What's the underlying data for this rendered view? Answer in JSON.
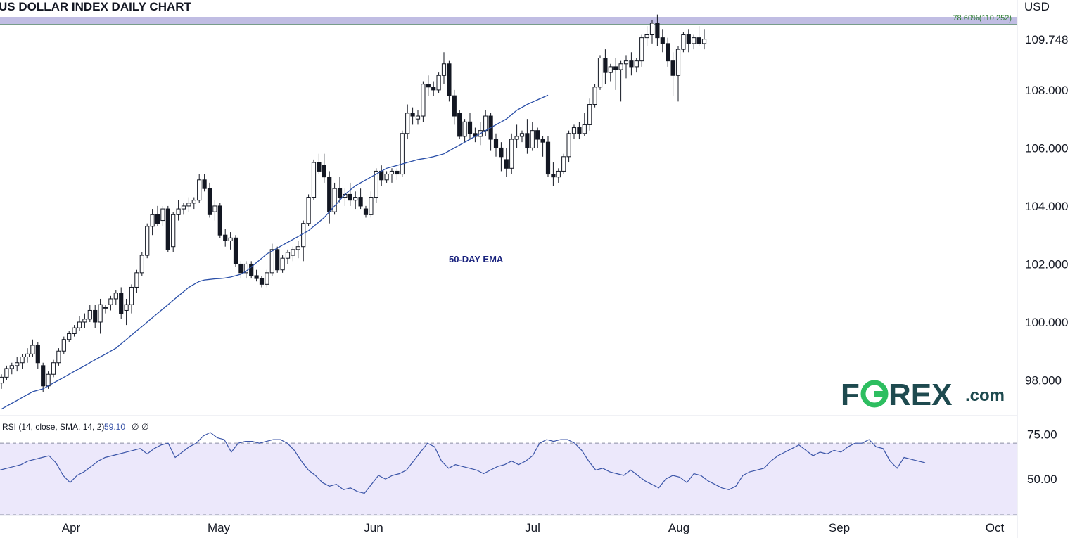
{
  "chart_data": [
    {
      "type": "candlestick",
      "title": "US DOLLAR INDEX DAILY CHART",
      "currency": "USD",
      "y_ticks": [
        "98.000",
        "100.000",
        "102.000",
        "104.000",
        "106.000",
        "108.000",
        "109.748"
      ],
      "ylim": [
        96.8,
        111.1
      ],
      "x_ticks": [
        "Apr",
        "May",
        "Jun",
        "Jul",
        "Aug",
        "Sep",
        "Oct"
      ],
      "current_price": "109.748",
      "fib_level": {
        "label": "78.60%(110.252)",
        "value": 110.252
      },
      "ema": {
        "label": "50-DAY EMA",
        "values": [
          97.0,
          97.1,
          97.2,
          97.3,
          97.4,
          97.5,
          97.6,
          97.65,
          97.7,
          97.8,
          97.9,
          98.0,
          98.1,
          98.2,
          98.3,
          98.4,
          98.5,
          98.6,
          98.7,
          98.8,
          98.9,
          99.0,
          99.1,
          99.25,
          99.4,
          99.55,
          99.7,
          99.85,
          100.0,
          100.15,
          100.3,
          100.45,
          100.6,
          100.75,
          100.9,
          101.05,
          101.2,
          101.3,
          101.4,
          101.45,
          101.47,
          101.49,
          101.5,
          101.52,
          101.55,
          101.6,
          101.65,
          101.75,
          101.9,
          102.05,
          102.2,
          102.35,
          102.45,
          102.55,
          102.65,
          102.75,
          102.85,
          102.95,
          103.05,
          103.15,
          103.3,
          103.45,
          103.6,
          103.8,
          104.0,
          104.2,
          104.4,
          104.55,
          104.7,
          104.8,
          104.9,
          105.0,
          105.1,
          105.2,
          105.3,
          105.35,
          105.4,
          105.45,
          105.5,
          105.55,
          105.6,
          105.63,
          105.66,
          105.7,
          105.75,
          105.8,
          105.9,
          106.0,
          106.1,
          106.2,
          106.3,
          106.4,
          106.5,
          106.6,
          106.7,
          106.8,
          106.9,
          107.0,
          107.15,
          107.3,
          107.4,
          107.5,
          107.58,
          107.66,
          107.74,
          107.82
        ]
      },
      "candles": [
        [
          97.9,
          98.2,
          97.7,
          98.1
        ],
        [
          98.1,
          98.5,
          98.0,
          98.4
        ],
        [
          98.4,
          98.6,
          98.2,
          98.5
        ],
        [
          98.5,
          98.8,
          98.3,
          98.6
        ],
        [
          98.6,
          98.9,
          98.4,
          98.8
        ],
        [
          98.8,
          99.1,
          98.6,
          98.9
        ],
        [
          98.9,
          99.4,
          98.8,
          99.2
        ],
        [
          99.2,
          99.3,
          98.4,
          98.6
        ],
        [
          98.5,
          98.6,
          97.6,
          97.8
        ],
        [
          97.8,
          98.3,
          97.7,
          98.2
        ],
        [
          98.2,
          98.7,
          98.1,
          98.6
        ],
        [
          98.6,
          99.1,
          98.5,
          99.0
        ],
        [
          99.0,
          99.5,
          98.9,
          99.4
        ],
        [
          99.4,
          99.7,
          99.3,
          99.6
        ],
        [
          99.6,
          99.9,
          99.5,
          99.8
        ],
        [
          99.8,
          100.2,
          99.7,
          100.0
        ],
        [
          100.0,
          100.3,
          99.8,
          100.1
        ],
        [
          100.1,
          100.6,
          100.0,
          100.4
        ],
        [
          100.4,
          100.6,
          99.8,
          100.0
        ],
        [
          100.0,
          100.8,
          99.6,
          100.6
        ],
        [
          100.5,
          100.6,
          100.3,
          100.5
        ],
        [
          100.6,
          100.9,
          100.4,
          100.8
        ],
        [
          100.8,
          101.1,
          100.6,
          101.0
        ],
        [
          101.0,
          101.2,
          100.1,
          100.3
        ],
        [
          100.4,
          100.8,
          99.9,
          100.6
        ],
        [
          100.6,
          101.3,
          100.3,
          101.2
        ],
        [
          101.2,
          101.8,
          101.0,
          101.7
        ],
        [
          101.7,
          102.4,
          101.6,
          102.3
        ],
        [
          102.3,
          103.4,
          102.2,
          103.3
        ],
        [
          103.3,
          103.9,
          103.0,
          103.7
        ],
        [
          103.7,
          104.0,
          103.3,
          103.4
        ],
        [
          103.5,
          104.0,
          103.3,
          103.9
        ],
        [
          103.9,
          104.0,
          102.4,
          102.5
        ],
        [
          102.6,
          103.8,
          102.4,
          103.7
        ],
        [
          103.7,
          104.2,
          103.5,
          103.9
        ],
        [
          103.9,
          104.1,
          103.7,
          104.0
        ],
        [
          104.0,
          104.3,
          103.8,
          104.1
        ],
        [
          104.1,
          104.3,
          103.9,
          104.2
        ],
        [
          104.2,
          105.1,
          104.1,
          104.9
        ],
        [
          104.9,
          105.1,
          104.5,
          104.6
        ],
        [
          104.6,
          104.8,
          103.6,
          103.7
        ],
        [
          103.8,
          104.2,
          103.5,
          104.0
        ],
        [
          104.0,
          104.1,
          102.9,
          103.0
        ],
        [
          103.0,
          103.2,
          102.6,
          102.8
        ],
        [
          102.8,
          103.1,
          102.5,
          102.9
        ],
        [
          102.9,
          103.0,
          101.9,
          102.0
        ],
        [
          102.0,
          102.1,
          101.5,
          101.7
        ],
        [
          101.7,
          102.1,
          101.5,
          102.0
        ],
        [
          102.0,
          102.1,
          101.5,
          101.6
        ],
        [
          101.6,
          101.8,
          101.4,
          101.5
        ],
        [
          101.5,
          101.6,
          101.2,
          101.3
        ],
        [
          101.3,
          101.8,
          101.2,
          101.7
        ],
        [
          101.7,
          102.7,
          101.6,
          102.5
        ],
        [
          102.5,
          102.6,
          101.7,
          101.8
        ],
        [
          101.8,
          102.3,
          101.7,
          102.2
        ],
        [
          102.2,
          102.5,
          102.0,
          102.4
        ],
        [
          102.3,
          102.6,
          102.1,
          102.5
        ],
        [
          102.5,
          102.8,
          102.2,
          102.6
        ],
        [
          102.6,
          103.5,
          102.1,
          103.4
        ],
        [
          103.4,
          104.4,
          103.3,
          104.3
        ],
        [
          104.3,
          105.6,
          104.2,
          105.5
        ],
        [
          105.5,
          105.8,
          105.1,
          105.2
        ],
        [
          105.4,
          105.8,
          104.8,
          105.0
        ],
        [
          105.0,
          105.2,
          103.4,
          103.8
        ],
        [
          103.8,
          104.8,
          103.7,
          104.6
        ],
        [
          104.6,
          105.0,
          104.1,
          104.3
        ],
        [
          104.3,
          104.6,
          104.0,
          104.4
        ],
        [
          104.4,
          104.8,
          104.0,
          104.2
        ],
        [
          104.2,
          104.5,
          103.9,
          104.3
        ],
        [
          104.3,
          104.6,
          103.9,
          104.0
        ],
        [
          103.9,
          104.0,
          103.6,
          103.7
        ],
        [
          103.7,
          104.5,
          103.6,
          104.3
        ],
        [
          104.3,
          105.3,
          104.1,
          105.2
        ],
        [
          105.2,
          105.4,
          104.7,
          104.9
        ],
        [
          104.9,
          105.2,
          104.8,
          105.1
        ],
        [
          105.1,
          105.3,
          104.8,
          105.2
        ],
        [
          105.2,
          105.3,
          104.9,
          105.1
        ],
        [
          105.1,
          106.6,
          105.0,
          106.5
        ],
        [
          106.5,
          107.5,
          106.3,
          107.2
        ],
        [
          107.2,
          107.4,
          106.8,
          107.1
        ],
        [
          107.0,
          107.3,
          106.8,
          107.1
        ],
        [
          107.1,
          108.3,
          106.9,
          108.2
        ],
        [
          108.2,
          108.5,
          107.8,
          108.1
        ],
        [
          108.1,
          108.3,
          107.8,
          108.0
        ],
        [
          108.0,
          108.6,
          107.9,
          108.5
        ],
        [
          108.5,
          109.3,
          108.2,
          108.9
        ],
        [
          108.9,
          109.0,
          107.6,
          107.8
        ],
        [
          107.8,
          108.0,
          106.8,
          107.1
        ],
        [
          107.2,
          107.3,
          106.3,
          106.4
        ],
        [
          106.4,
          107.0,
          106.2,
          106.9
        ],
        [
          106.9,
          107.2,
          106.3,
          106.5
        ],
        [
          106.5,
          106.7,
          106.2,
          106.4
        ],
        [
          106.4,
          106.9,
          106.1,
          106.6
        ],
        [
          106.6,
          107.3,
          106.4,
          107.1
        ],
        [
          107.1,
          107.2,
          105.9,
          106.3
        ],
        [
          106.3,
          106.5,
          105.7,
          106.0
        ],
        [
          106.0,
          106.2,
          105.2,
          105.7
        ],
        [
          105.6,
          106.0,
          105.0,
          105.3
        ],
        [
          105.3,
          106.5,
          105.1,
          106.3
        ],
        [
          106.3,
          106.8,
          106.0,
          106.4
        ],
        [
          106.4,
          106.6,
          106.2,
          106.5
        ],
        [
          106.5,
          107.0,
          105.8,
          106.0
        ],
        [
          106.0,
          106.9,
          105.9,
          106.6
        ],
        [
          106.6,
          106.7,
          106.0,
          106.3
        ],
        [
          106.3,
          106.4,
          105.7,
          106.2
        ],
        [
          106.2,
          106.4,
          105.0,
          105.1
        ],
        [
          105.1,
          105.5,
          104.7,
          105.0
        ],
        [
          105.0,
          105.3,
          104.8,
          105.2
        ],
        [
          105.2,
          105.8,
          105.1,
          105.7
        ],
        [
          105.7,
          106.6,
          105.5,
          106.5
        ],
        [
          106.5,
          106.8,
          106.3,
          106.7
        ],
        [
          106.7,
          106.9,
          106.3,
          106.5
        ],
        [
          106.5,
          107.2,
          106.4,
          106.8
        ],
        [
          106.8,
          107.7,
          106.6,
          107.5
        ],
        [
          107.5,
          108.2,
          107.4,
          108.1
        ],
        [
          108.1,
          109.2,
          108.0,
          109.1
        ],
        [
          109.1,
          109.4,
          108.2,
          108.6
        ],
        [
          108.6,
          108.9,
          108.3,
          108.8
        ],
        [
          108.8,
          109.1,
          108.0,
          108.7
        ],
        [
          108.7,
          109.0,
          107.6,
          108.9
        ],
        [
          108.9,
          109.2,
          108.4,
          109.0
        ],
        [
          109.0,
          109.3,
          108.5,
          108.8
        ],
        [
          108.8,
          109.1,
          108.6,
          109.0
        ],
        [
          109.0,
          109.9,
          108.8,
          109.8
        ],
        [
          109.8,
          110.2,
          109.5,
          109.9
        ],
        [
          109.9,
          110.4,
          109.6,
          110.3
        ],
        [
          110.3,
          110.6,
          109.5,
          109.8
        ],
        [
          109.8,
          110.1,
          109.3,
          109.6
        ],
        [
          109.6,
          109.8,
          108.8,
          109.0
        ],
        [
          109.0,
          109.3,
          107.8,
          108.5
        ],
        [
          108.5,
          109.5,
          107.6,
          109.4
        ],
        [
          109.4,
          110.0,
          109.3,
          109.9
        ],
        [
          109.9,
          110.1,
          109.3,
          109.6
        ],
        [
          109.6,
          109.9,
          109.4,
          109.8
        ],
        [
          109.8,
          110.2,
          109.5,
          109.6
        ],
        [
          109.6,
          110.1,
          109.4,
          109.75
        ]
      ],
      "date_ticks_index": {
        "Apr": 18,
        "May": 46,
        "Jun": 76,
        "Jul": 106,
        "Aug": 135,
        "Sep": 163,
        "Oct": 191
      }
    },
    {
      "type": "line",
      "title": "RSI (14, close, SMA, 14, 2)",
      "current_value": "59.10",
      "extra_labels": [
        "∅",
        "∅"
      ],
      "y_ticks": [
        "50.00",
        "75.00"
      ],
      "ylim": [
        30,
        85
      ],
      "band": [
        30,
        70
      ],
      "values": [
        55,
        56,
        57,
        58,
        60,
        61,
        62,
        63,
        59,
        52,
        48,
        52,
        54,
        57,
        60,
        62,
        63,
        64,
        65,
        66,
        67,
        64,
        67,
        69,
        70,
        62,
        65,
        68,
        70,
        74,
        76,
        73,
        72,
        65,
        70,
        71,
        71,
        70,
        71,
        72,
        72,
        70,
        66,
        60,
        55,
        52,
        48,
        46,
        47,
        44,
        45,
        43,
        42,
        47,
        52,
        50,
        52,
        53,
        55,
        60,
        65,
        70,
        68,
        60,
        56,
        58,
        57,
        56,
        55,
        53,
        55,
        57,
        58,
        60,
        58,
        60,
        63,
        70,
        72,
        71,
        72,
        72,
        70,
        66,
        60,
        55,
        56,
        54,
        53,
        52,
        55,
        52,
        49,
        47,
        45,
        50,
        52,
        51,
        48,
        53,
        52,
        49,
        47,
        45,
        44,
        46,
        52,
        54,
        55,
        56,
        60,
        63,
        65,
        67,
        69,
        66,
        63,
        65,
        64,
        66,
        65,
        68,
        70,
        70,
        72,
        68,
        67,
        60,
        56,
        62,
        61,
        60,
        59.1
      ],
      "x_start_index": 100
    }
  ],
  "branding": {
    "logo_part1": "F",
    "logo_part2": "REX",
    "logo_suffix": ".com",
    "accent": "#2dbe60",
    "primary": "#1e4a4f"
  },
  "colors": {
    "ema": "#2a4fa8",
    "rsi_line": "#3b55a8",
    "rsi_band": "#ece8fb",
    "fib_band": "#b9b6e0",
    "fib_line": "#2e7d32",
    "up_fill": "#ffffff",
    "down_fill": "#131722"
  },
  "y_tick_values": [
    98,
    100,
    102,
    104,
    106,
    108
  ],
  "current_tick_value": 109.748,
  "rsi_tick_values": [
    50,
    75
  ]
}
